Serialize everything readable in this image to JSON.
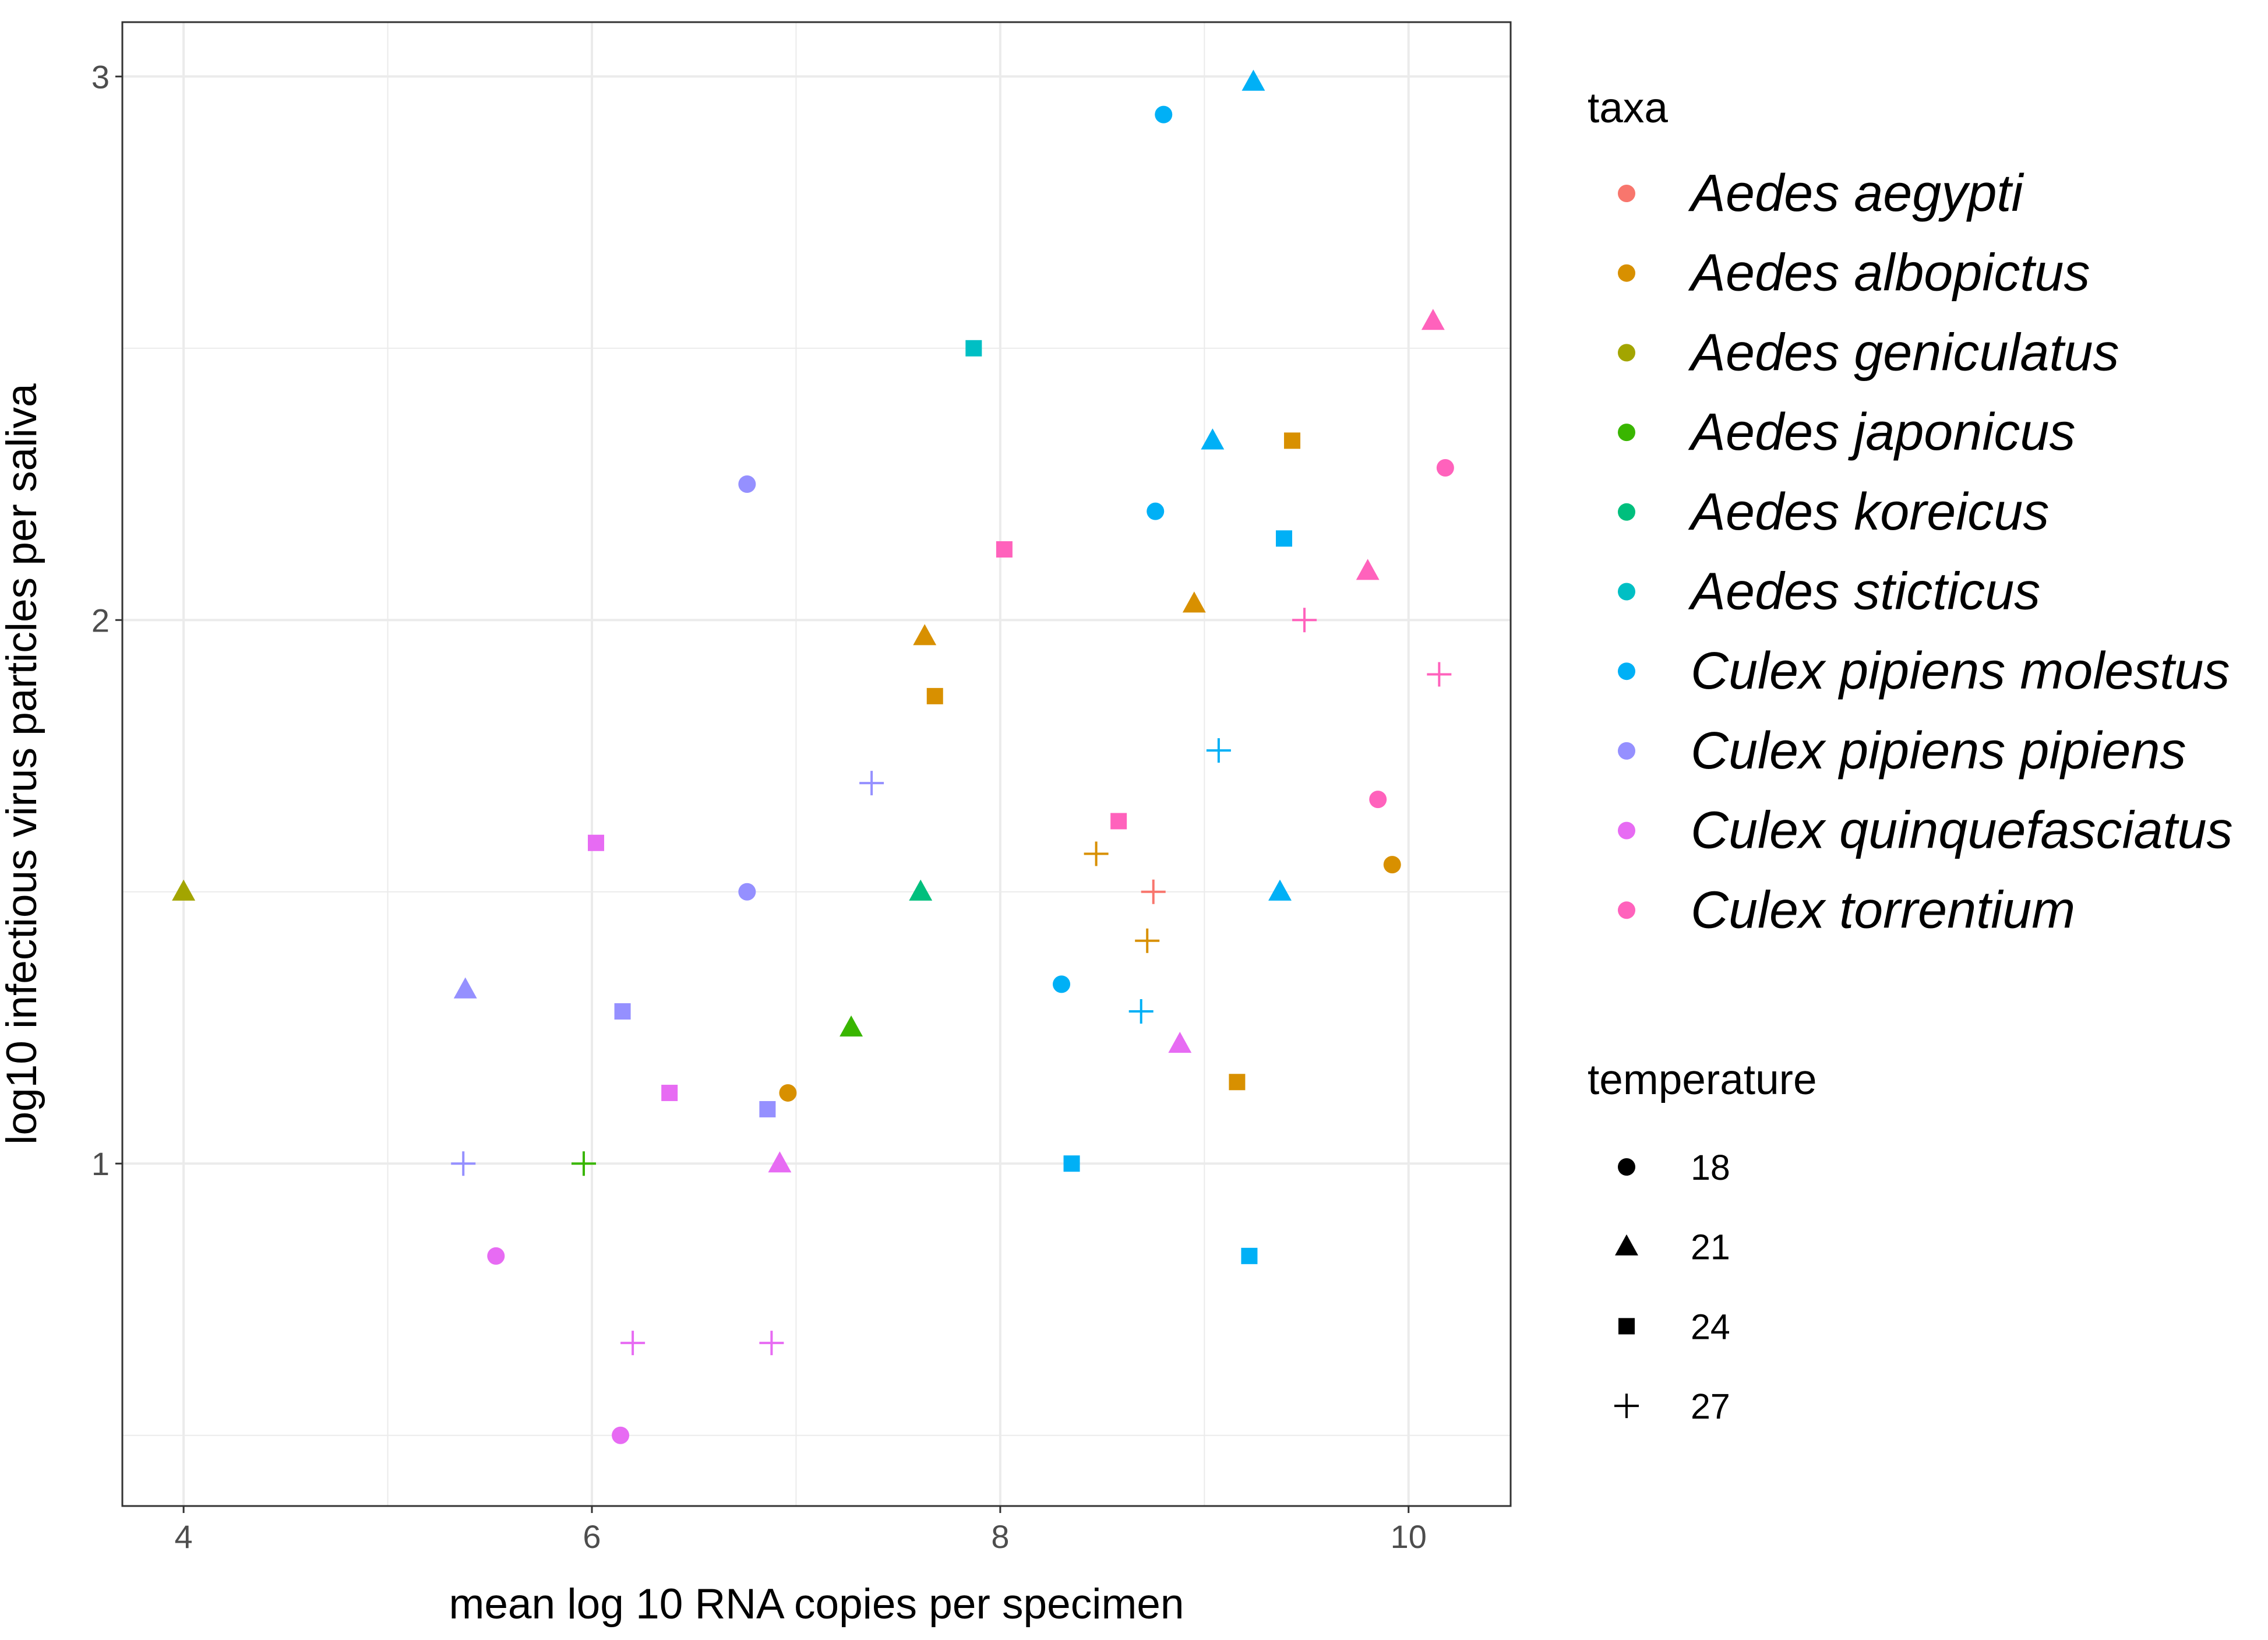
{
  "chart_data": {
    "type": "scatter",
    "xlabel": "mean log 10 RNA copies per specimen",
    "ylabel": "log10 infectious virus particles per saliva",
    "xlim": [
      3.7,
      10.5
    ],
    "ylim": [
      0.37,
      3.1
    ],
    "x_ticks": [
      4,
      6,
      8,
      10
    ],
    "y_ticks": [
      1,
      2,
      3
    ],
    "x_minor": [
      5,
      7,
      9
    ],
    "y_minor": [
      0.5,
      1.5,
      2.5
    ],
    "grid": true,
    "legend_position": "right",
    "color_legend": {
      "title": "taxa",
      "entries": [
        {
          "label": "Aedes aegypti",
          "color": "#F8766D"
        },
        {
          "label": "Aedes albopictus",
          "color": "#D89000"
        },
        {
          "label": "Aedes geniculatus",
          "color": "#A3A500"
        },
        {
          "label": "Aedes japonicus",
          "color": "#39B600"
        },
        {
          "label": "Aedes koreicus",
          "color": "#00BF7D"
        },
        {
          "label": "Aedes sticticus",
          "color": "#00BFC4"
        },
        {
          "label": "Culex pipiens molestus",
          "color": "#00B0F6"
        },
        {
          "label": "Culex pipiens pipiens",
          "color": "#9590FF"
        },
        {
          "label": "Culex quinquefasciatus",
          "color": "#E76BF3"
        },
        {
          "label": "Culex torrentium",
          "color": "#FF62BC"
        }
      ]
    },
    "shape_legend": {
      "title": "temperature",
      "entries": [
        {
          "label": "18",
          "shape": "circle"
        },
        {
          "label": "21",
          "shape": "triangle"
        },
        {
          "label": "24",
          "shape": "square"
        },
        {
          "label": "27",
          "shape": "plus"
        }
      ]
    },
    "points": [
      {
        "x": 8.8,
        "y": 2.93,
        "taxon": "Culex pipiens molestus",
        "temperature": "18"
      },
      {
        "x": 9.24,
        "y": 2.99,
        "taxon": "Culex pipiens molestus",
        "temperature": "21"
      },
      {
        "x": 7.87,
        "y": 2.5,
        "taxon": "Aedes sticticus",
        "temperature": "24"
      },
      {
        "x": 10.12,
        "y": 2.55,
        "taxon": "Culex torrentium",
        "temperature": "21"
      },
      {
        "x": 9.04,
        "y": 2.33,
        "taxon": "Culex pipiens molestus",
        "temperature": "21"
      },
      {
        "x": 9.43,
        "y": 2.33,
        "taxon": "Aedes albopictus",
        "temperature": "24"
      },
      {
        "x": 10.18,
        "y": 2.28,
        "taxon": "Culex torrentium",
        "temperature": "18"
      },
      {
        "x": 6.76,
        "y": 2.25,
        "taxon": "Culex pipiens pipiens",
        "temperature": "18"
      },
      {
        "x": 8.76,
        "y": 2.2,
        "taxon": "Culex pipiens molestus",
        "temperature": "18"
      },
      {
        "x": 9.39,
        "y": 2.15,
        "taxon": "Culex pipiens molestus",
        "temperature": "24"
      },
      {
        "x": 8.02,
        "y": 2.13,
        "taxon": "Culex torrentium",
        "temperature": "24"
      },
      {
        "x": 9.8,
        "y": 2.09,
        "taxon": "Culex torrentium",
        "temperature": "21"
      },
      {
        "x": 8.95,
        "y": 2.03,
        "taxon": "Aedes albopictus",
        "temperature": "21"
      },
      {
        "x": 9.49,
        "y": 2.0,
        "taxon": "Culex torrentium",
        "temperature": "27"
      },
      {
        "x": 7.63,
        "y": 1.97,
        "taxon": "Aedes albopictus",
        "temperature": "21"
      },
      {
        "x": 10.15,
        "y": 1.9,
        "taxon": "Culex torrentium",
        "temperature": "27"
      },
      {
        "x": 7.68,
        "y": 1.86,
        "taxon": "Aedes albopictus",
        "temperature": "24"
      },
      {
        "x": 9.07,
        "y": 1.76,
        "taxon": "Culex pipiens molestus",
        "temperature": "27"
      },
      {
        "x": 7.37,
        "y": 1.7,
        "taxon": "Culex pipiens pipiens",
        "temperature": "27"
      },
      {
        "x": 9.85,
        "y": 1.67,
        "taxon": "Culex torrentium",
        "temperature": "18"
      },
      {
        "x": 8.58,
        "y": 1.63,
        "taxon": "Culex torrentium",
        "temperature": "24"
      },
      {
        "x": 6.02,
        "y": 1.59,
        "taxon": "Culex quinquefasciatus",
        "temperature": "24"
      },
      {
        "x": 8.47,
        "y": 1.57,
        "taxon": "Aedes albopictus",
        "temperature": "27"
      },
      {
        "x": 9.92,
        "y": 1.55,
        "taxon": "Aedes albopictus",
        "temperature": "18"
      },
      {
        "x": 4.0,
        "y": 1.5,
        "taxon": "Aedes geniculatus",
        "temperature": "21"
      },
      {
        "x": 6.76,
        "y": 1.5,
        "taxon": "Culex pipiens pipiens",
        "temperature": "18"
      },
      {
        "x": 7.61,
        "y": 1.5,
        "taxon": "Aedes koreicus",
        "temperature": "21"
      },
      {
        "x": 8.75,
        "y": 1.5,
        "taxon": "Aedes aegypti",
        "temperature": "27"
      },
      {
        "x": 9.37,
        "y": 1.5,
        "taxon": "Culex pipiens molestus",
        "temperature": "21"
      },
      {
        "x": 8.72,
        "y": 1.41,
        "taxon": "Aedes albopictus",
        "temperature": "27"
      },
      {
        "x": 5.38,
        "y": 1.32,
        "taxon": "Culex pipiens pipiens",
        "temperature": "21"
      },
      {
        "x": 8.3,
        "y": 1.33,
        "taxon": "Culex pipiens molestus",
        "temperature": "18"
      },
      {
        "x": 6.15,
        "y": 1.28,
        "taxon": "Culex pipiens pipiens",
        "temperature": "24"
      },
      {
        "x": 8.69,
        "y": 1.28,
        "taxon": "Culex pipiens molestus",
        "temperature": "27"
      },
      {
        "x": 7.27,
        "y": 1.25,
        "taxon": "Aedes japonicus",
        "temperature": "21"
      },
      {
        "x": 8.88,
        "y": 1.22,
        "taxon": "Culex quinquefasciatus",
        "temperature": "21"
      },
      {
        "x": 9.16,
        "y": 1.15,
        "taxon": "Aedes albopictus",
        "temperature": "24"
      },
      {
        "x": 6.38,
        "y": 1.13,
        "taxon": "Culex quinquefasciatus",
        "temperature": "24"
      },
      {
        "x": 6.96,
        "y": 1.13,
        "taxon": "Aedes albopictus",
        "temperature": "18"
      },
      {
        "x": 6.86,
        "y": 1.1,
        "taxon": "Culex pipiens pipiens",
        "temperature": "24"
      },
      {
        "x": 5.37,
        "y": 1.0,
        "taxon": "Culex pipiens pipiens",
        "temperature": "27"
      },
      {
        "x": 5.96,
        "y": 1.0,
        "taxon": "Aedes japonicus",
        "temperature": "27"
      },
      {
        "x": 6.92,
        "y": 1.0,
        "taxon": "Culex quinquefasciatus",
        "temperature": "21"
      },
      {
        "x": 8.35,
        "y": 1.0,
        "taxon": "Culex pipiens molestus",
        "temperature": "24"
      },
      {
        "x": 5.53,
        "y": 0.83,
        "taxon": "Culex quinquefasciatus",
        "temperature": "18"
      },
      {
        "x": 9.22,
        "y": 0.83,
        "taxon": "Culex pipiens molestus",
        "temperature": "24"
      },
      {
        "x": 6.2,
        "y": 0.67,
        "taxon": "Culex quinquefasciatus",
        "temperature": "27"
      },
      {
        "x": 6.88,
        "y": 0.67,
        "taxon": "Culex quinquefasciatus",
        "temperature": "27"
      },
      {
        "x": 6.14,
        "y": 0.5,
        "taxon": "Culex quinquefasciatus",
        "temperature": "18"
      }
    ]
  }
}
